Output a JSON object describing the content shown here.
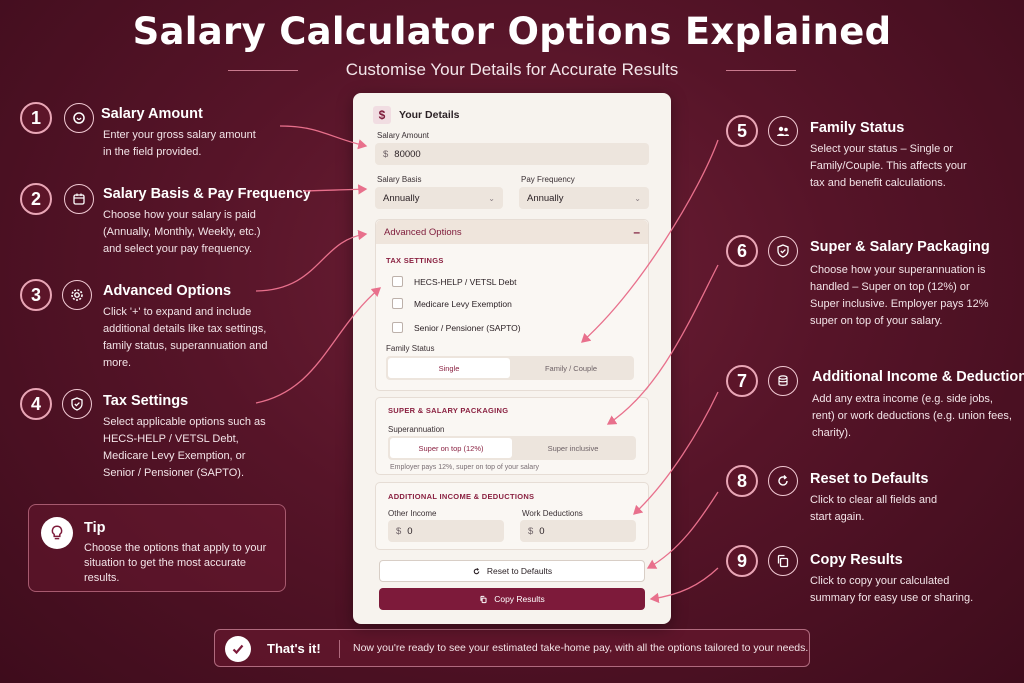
{
  "title": "Salary Calculator Options Explained",
  "subtitle": "Customise Your Details for Accurate Results",
  "colors": {
    "background": "#561428",
    "accent": "#7d1a3a",
    "arrow": "#e8708c",
    "panel": "#f7f3ee"
  },
  "steps": [
    {
      "num": "1",
      "icon": "hand-coins-icon",
      "title": "Salary Amount",
      "desc": "Enter your gross salary amount in the field provided."
    },
    {
      "num": "2",
      "icon": "calendar-icon",
      "title": "Salary Basis & Pay Frequency",
      "desc": "Choose how your salary is paid (Annually, Monthly, Weekly, etc.) and select your pay frequency."
    },
    {
      "num": "3",
      "icon": "gear-icon",
      "title": "Advanced Options",
      "desc": "Click '+' to expand and include additional details like tax settings, family status, superannuation and more."
    },
    {
      "num": "4",
      "icon": "shield-check-icon",
      "title": "Tax Settings",
      "desc": "Select applicable options such as HECS-HELP / VETSL Debt, Medicare Levy Exemption, or Senior / Pensioner (SAPTO)."
    },
    {
      "num": "5",
      "icon": "users-icon",
      "title": "Family Status",
      "desc": "Select your status – Single or Family/Couple. This affects your tax and benefit calculations."
    },
    {
      "num": "6",
      "icon": "shield-check-icon",
      "title": "Super & Salary Packaging",
      "desc": "Choose how your superannuation is handled – Super on top (12%) or Super inclusive. Employer pays 12% super on top of your salary."
    },
    {
      "num": "7",
      "icon": "coins-icon",
      "title": "Additional Income & Deductions",
      "desc": "Add any extra income (e.g. side jobs, rent) or work deductions (e.g. union fees, charity)."
    },
    {
      "num": "8",
      "icon": "reset-icon",
      "title": "Reset to Defaults",
      "desc": "Click to clear all fields and start again."
    },
    {
      "num": "9",
      "icon": "copy-icon",
      "title": "Copy Results",
      "desc": "Click to copy your calculated summary for easy use or sharing."
    }
  ],
  "tip": {
    "icon": "lightbulb-icon",
    "title": "Tip",
    "text": "Choose the options that apply to your situation to get the most accurate results."
  },
  "bottom": {
    "icon": "check-icon",
    "title": "That's it!",
    "text": "Now you're ready to see your estimated take-home pay, with all the options tailored to your needs."
  },
  "panel": {
    "header_icon": "$",
    "header": "Your Details",
    "salary_amount_label": "Salary Amount",
    "currency": "$",
    "salary_amount_value": "80000",
    "salary_basis_label": "Salary Basis",
    "salary_basis_value": "Annually",
    "pay_frequency_label": "Pay Frequency",
    "pay_frequency_value": "Annually",
    "advanced_label": "Advanced Options",
    "advanced_toggle": "–",
    "tax_settings_title": "TAX SETTINGS",
    "tax_options": [
      "HECS-HELP / VETSL Debt",
      "Medicare Levy Exemption",
      "Senior / Pensioner (SAPTO)"
    ],
    "family_status_label": "Family Status",
    "family_options": [
      "Single",
      "Family / Couple"
    ],
    "super_title": "SUPER & SALARY PACKAGING",
    "super_label": "Superannuation",
    "super_options": [
      "Super on top (12%)",
      "Super inclusive"
    ],
    "super_note": "Employer pays 12%, super on top of your salary",
    "income_title": "ADDITIONAL INCOME & DEDUCTIONS",
    "other_income_label": "Other Income",
    "other_income_value": "0",
    "work_deductions_label": "Work Deductions",
    "work_deductions_value": "0",
    "reset_button": "Reset to Defaults",
    "copy_button": "Copy Results"
  }
}
